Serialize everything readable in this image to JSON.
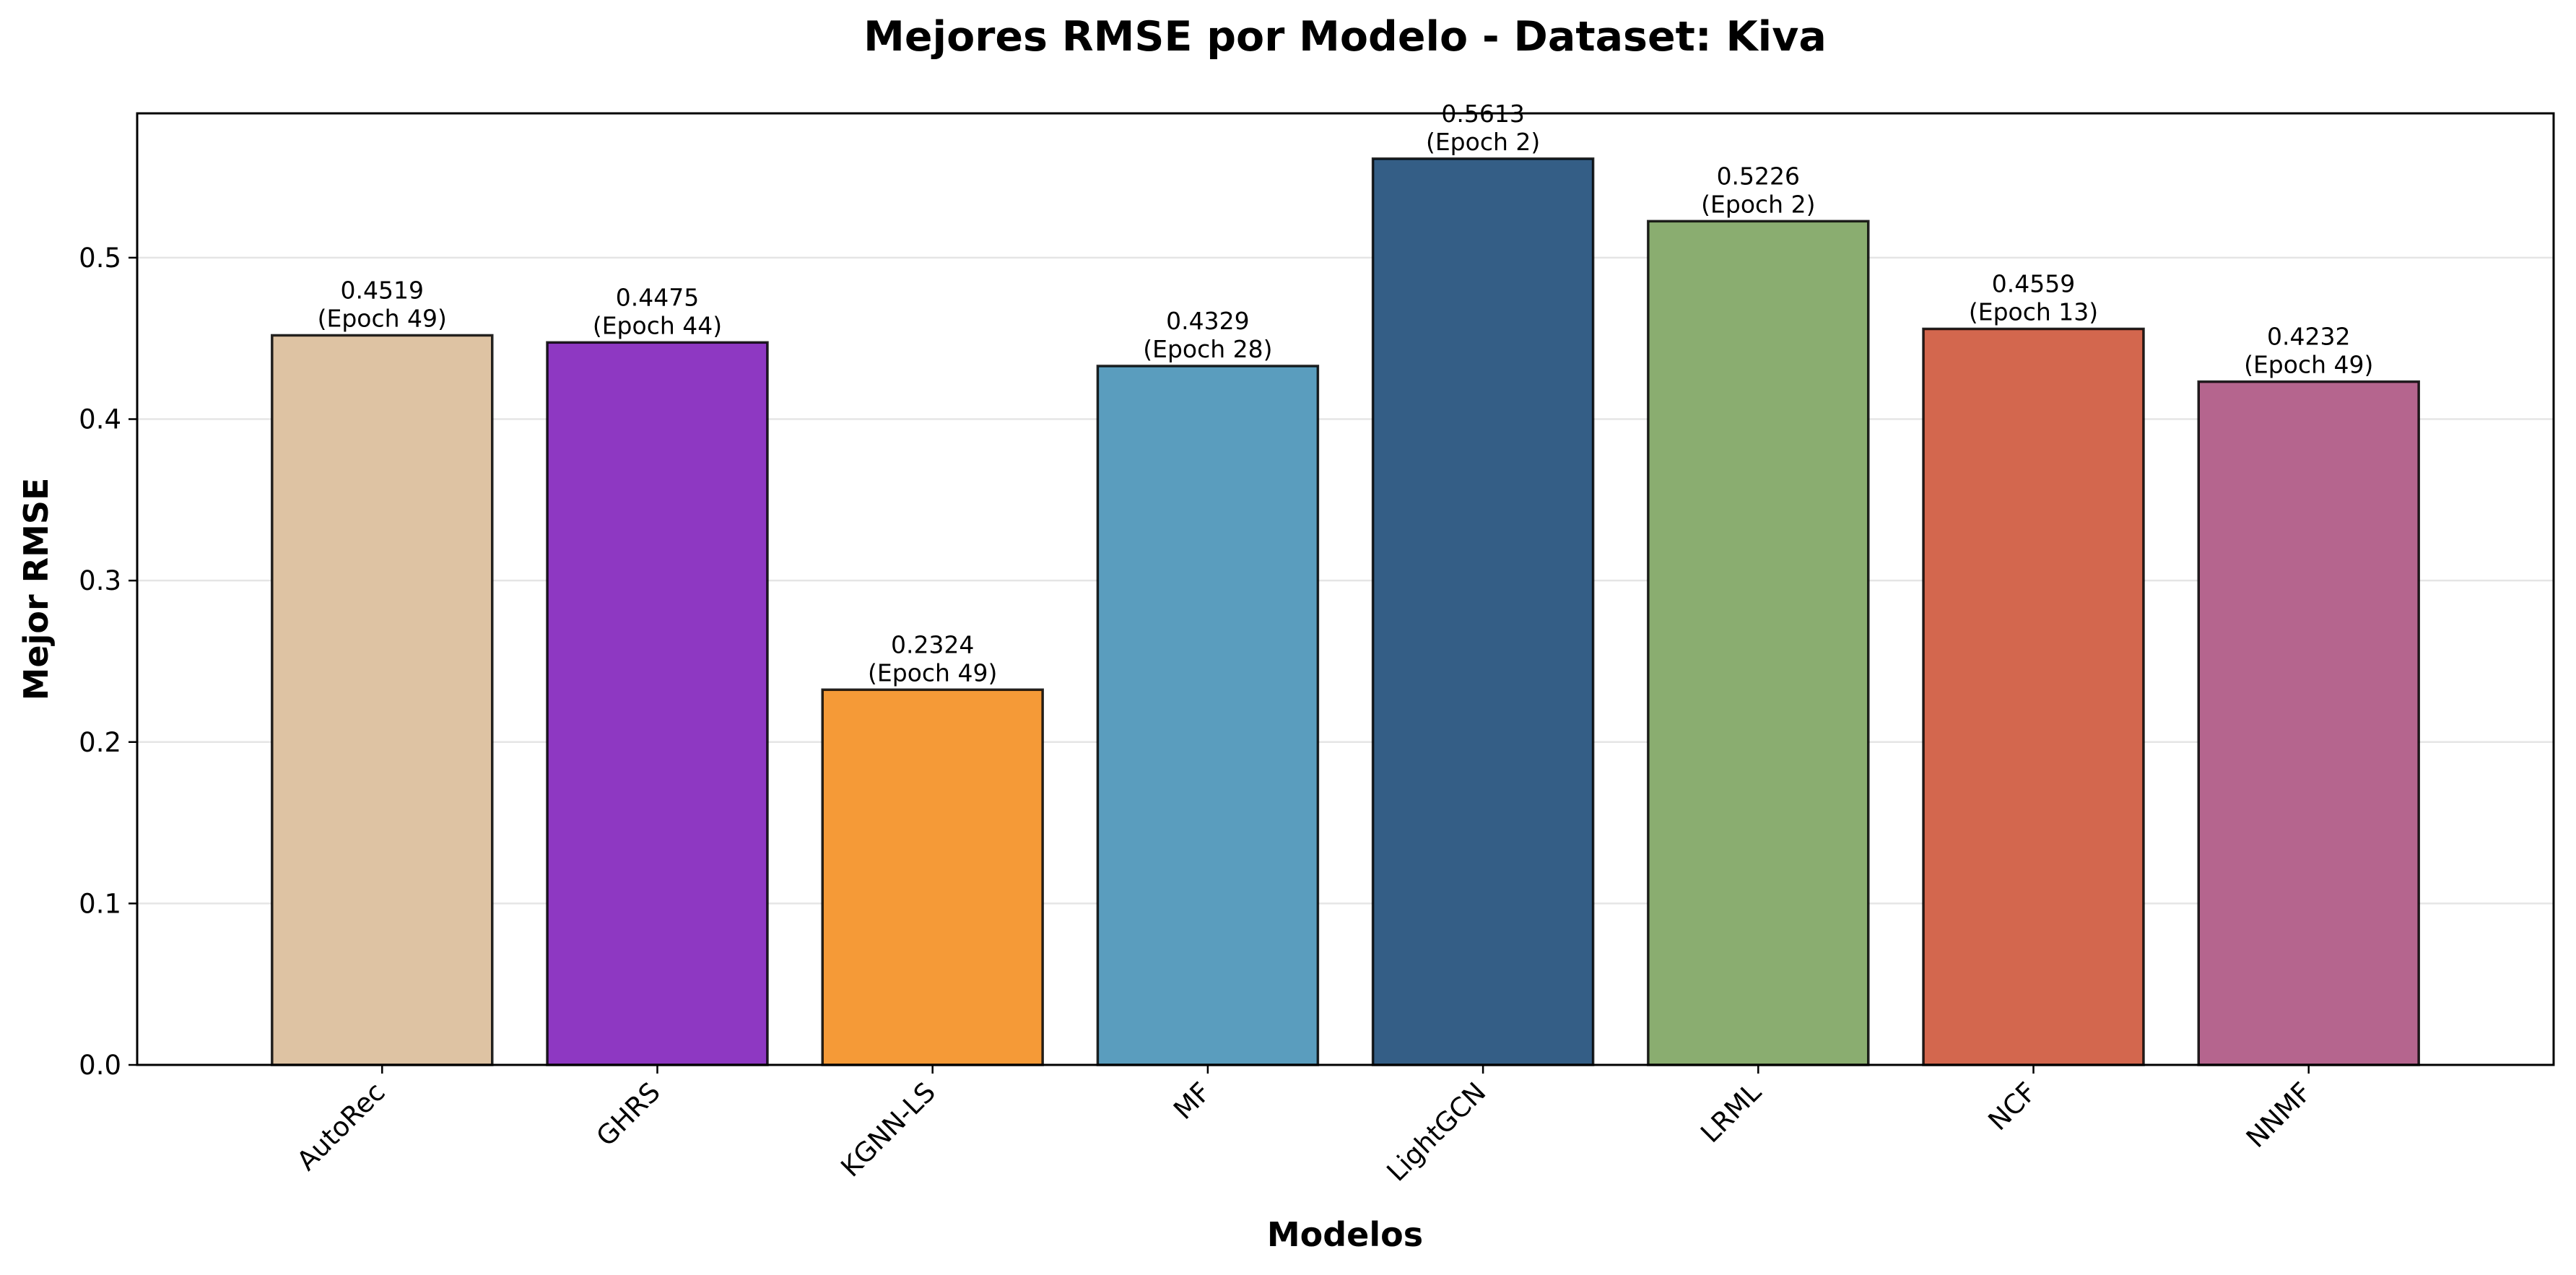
{
  "chart_data": {
    "type": "bar",
    "title": "Mejores RMSE por Modelo - Dataset: Kiva",
    "xlabel": "Modelos",
    "ylabel": "Mejor RMSE",
    "categories": [
      "AutoRec",
      "GHRS",
      "KGNN-LS",
      "MF",
      "LightGCN",
      "LRML",
      "NCF",
      "NNMF"
    ],
    "values": [
      0.4519,
      0.4475,
      0.2324,
      0.4329,
      0.5613,
      0.5226,
      0.4559,
      0.4232
    ],
    "value_labels": [
      "0.4519",
      "0.4475",
      "0.2324",
      "0.4329",
      "0.5613",
      "0.5226",
      "0.4559",
      "0.4232"
    ],
    "epoch_labels": [
      "(Epoch 49)",
      "(Epoch 44)",
      "(Epoch 49)",
      "(Epoch 28)",
      "(Epoch 2)",
      "(Epoch 2)",
      "(Epoch 13)",
      "(Epoch 49)"
    ],
    "colors": [
      "#DEC3A3",
      "#8E38C2",
      "#F59A37",
      "#5A9DBE",
      "#345E86",
      "#8AAD70",
      "#D3674E",
      "#B5658E"
    ],
    "yticks": [
      0.0,
      0.1,
      0.2,
      0.3,
      0.4,
      0.5
    ],
    "ytick_labels": [
      "0.0",
      "0.1",
      "0.2",
      "0.3",
      "0.4",
      "0.5"
    ],
    "ylim": [
      0,
      0.5894
    ],
    "grid": "horizontal",
    "legend": "none"
  }
}
